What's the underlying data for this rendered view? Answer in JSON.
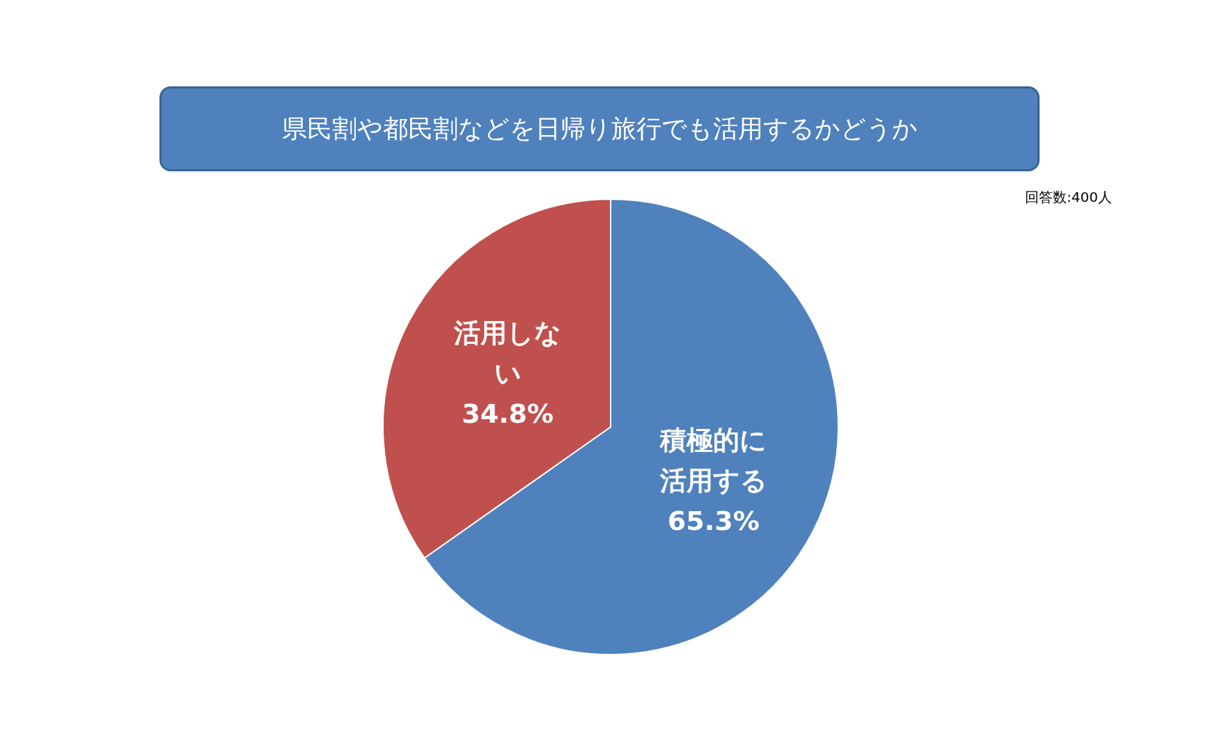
{
  "chart_data": {
    "type": "pie",
    "title": "県民割や都民割などを日帰り旅行でも活用するかどうか",
    "annotations": [
      "回答数:400人"
    ],
    "categories": [
      "積極的に活用する",
      "活用しない"
    ],
    "values": [
      65.3,
      34.8
    ],
    "colors": [
      "#4f81bd",
      "#c0504d"
    ],
    "value_labels": [
      "65.3%",
      "34.8%"
    ],
    "legend": false
  }
}
